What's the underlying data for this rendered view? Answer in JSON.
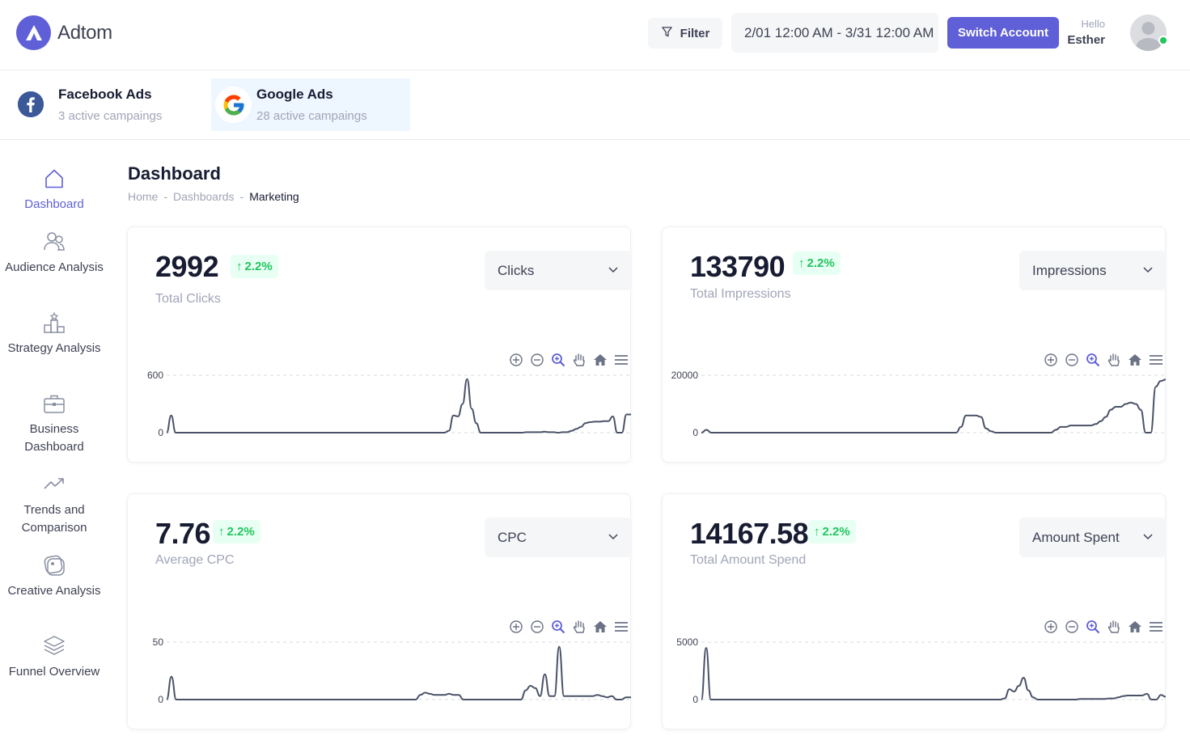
{
  "header": {
    "brand": "Adtom",
    "filter_label": "Filter",
    "date_range": "2/01 12:00 AM - 3/31 12:00 AM",
    "switch_label": "Switch Account",
    "greeting": "Hello",
    "user_name": "Esther"
  },
  "accounts": [
    {
      "title": "Facebook Ads",
      "subtitle": "3 active campaings"
    },
    {
      "title": "Google Ads",
      "subtitle": "28 active campaings"
    }
  ],
  "sidebar": {
    "items": [
      {
        "label": "Dashboard",
        "icon": "home-icon",
        "active": true
      },
      {
        "label": "Audience Analysis",
        "icon": "users-icon"
      },
      {
        "label": "Strategy Analysis",
        "icon": "podium-icon"
      },
      {
        "label": "Business Dashboard",
        "icon": "briefcase-icon"
      },
      {
        "label": "Trends and Comparison",
        "icon": "trend-icon"
      },
      {
        "label": "Creative Analysis",
        "icon": "creative-icon"
      },
      {
        "label": "Funnel Overview",
        "icon": "layers-icon"
      }
    ]
  },
  "page": {
    "title": "Dashboard",
    "breadcrumb": [
      "Home",
      "Dashboards",
      "Marketing"
    ]
  },
  "colors": {
    "accent": "#5f5fd8",
    "positive": "#22c55e",
    "line": "#4a5268"
  },
  "cards": [
    {
      "value": "2992",
      "change": "2.2%",
      "label": "Total Clicks",
      "select": "Clicks"
    },
    {
      "value": "133790",
      "change": "2.2%",
      "label": "Total Impressions",
      "select": "Impressions"
    },
    {
      "value": "7.76",
      "change": "2.2%",
      "label": "Average CPC",
      "select": "CPC"
    },
    {
      "value": "14167.58",
      "change": "2.2%",
      "label": "Total Amount Spend",
      "select": "Amount Spent"
    }
  ],
  "chart_data": [
    {
      "type": "line",
      "y_ticks": [
        "600",
        "0"
      ],
      "ylim": [
        0,
        600
      ],
      "grid": true,
      "values": [
        0,
        180,
        0,
        0,
        0,
        0,
        0,
        0,
        0,
        0,
        0,
        0,
        0,
        0,
        0,
        0,
        0,
        0,
        0,
        0,
        0,
        0,
        0,
        0,
        0,
        0,
        0,
        0,
        0,
        0,
        0,
        0,
        0,
        0,
        0,
        0,
        0,
        0,
        0,
        0,
        0,
        0,
        0,
        0,
        0,
        0,
        0,
        0,
        0,
        0,
        0,
        0,
        0,
        0,
        0,
        0,
        0,
        0,
        0,
        0,
        0,
        0,
        20,
        180,
        170,
        300,
        560,
        250,
        100,
        0,
        0,
        0,
        0,
        0,
        0,
        0,
        0,
        0,
        0,
        5,
        5,
        5,
        5,
        10,
        5,
        5,
        0,
        5,
        5,
        20,
        40,
        60,
        100,
        110,
        115,
        115,
        120,
        120,
        170,
        0,
        0,
        190,
        190
      ]
    },
    {
      "type": "line",
      "y_ticks": [
        "20000",
        "0"
      ],
      "ylim": [
        0,
        20000
      ],
      "grid": true,
      "values": [
        0,
        1000,
        0,
        0,
        0,
        0,
        0,
        0,
        0,
        0,
        0,
        0,
        0,
        0,
        0,
        0,
        0,
        0,
        0,
        0,
        0,
        0,
        0,
        0,
        0,
        0,
        0,
        0,
        0,
        0,
        0,
        0,
        0,
        0,
        0,
        0,
        0,
        0,
        0,
        0,
        0,
        0,
        0,
        0,
        0,
        0,
        0,
        0,
        0,
        0,
        0,
        0,
        2000,
        6000,
        6000,
        6000,
        5500,
        1500,
        500,
        0,
        0,
        0,
        0,
        0,
        0,
        0,
        0,
        0,
        0,
        0,
        0,
        1000,
        2000,
        2000,
        2500,
        2500,
        2500,
        2500,
        2500,
        3000,
        4000,
        5500,
        8000,
        9000,
        9000,
        10000,
        10500,
        10000,
        8000,
        0,
        0,
        16000,
        18000,
        18500
      ]
    },
    {
      "type": "line",
      "y_ticks": [
        "50",
        "0"
      ],
      "ylim": [
        0,
        50
      ],
      "grid": true,
      "values": [
        0,
        20,
        0,
        0,
        0,
        0,
        0,
        0,
        0,
        0,
        0,
        0,
        0,
        0,
        0,
        0,
        0,
        0,
        0,
        0,
        0,
        0,
        0,
        0,
        0,
        0,
        0,
        0,
        0,
        0,
        0,
        0,
        0,
        0,
        0,
        0,
        0,
        0,
        0,
        0,
        0,
        0,
        0,
        0,
        0,
        0,
        0,
        0,
        0,
        0,
        0,
        0,
        0,
        4,
        6,
        5,
        4,
        4,
        4,
        5,
        4,
        4,
        0,
        0,
        0,
        0,
        0,
        0,
        0,
        0,
        0,
        0,
        0,
        0,
        0,
        8,
        12,
        10,
        3,
        22,
        3,
        3,
        46,
        3,
        3,
        3,
        3,
        3,
        3,
        3,
        4,
        3,
        2,
        3,
        0,
        0,
        2,
        2
      ]
    },
    {
      "type": "line",
      "y_ticks": [
        "5000",
        "0"
      ],
      "ylim": [
        0,
        5000
      ],
      "grid": true,
      "values": [
        0,
        4500,
        0,
        0,
        0,
        0,
        0,
        0,
        0,
        0,
        0,
        0,
        0,
        0,
        0,
        0,
        0,
        0,
        0,
        0,
        0,
        0,
        0,
        0,
        0,
        0,
        0,
        0,
        0,
        0,
        0,
        0,
        0,
        0,
        0,
        0,
        0,
        0,
        0,
        0,
        0,
        0,
        0,
        0,
        0,
        0,
        0,
        0,
        0,
        0,
        0,
        0,
        0,
        0,
        0,
        0,
        0,
        0,
        0,
        0,
        0,
        0,
        0,
        0,
        100,
        900,
        700,
        1200,
        1900,
        800,
        200,
        0,
        0,
        0,
        0,
        0,
        0,
        0,
        0,
        0,
        50,
        50,
        50,
        50,
        50,
        50,
        100,
        100,
        200,
        300,
        350,
        350,
        350,
        350,
        500,
        0,
        0,
        400,
        250
      ]
    }
  ]
}
